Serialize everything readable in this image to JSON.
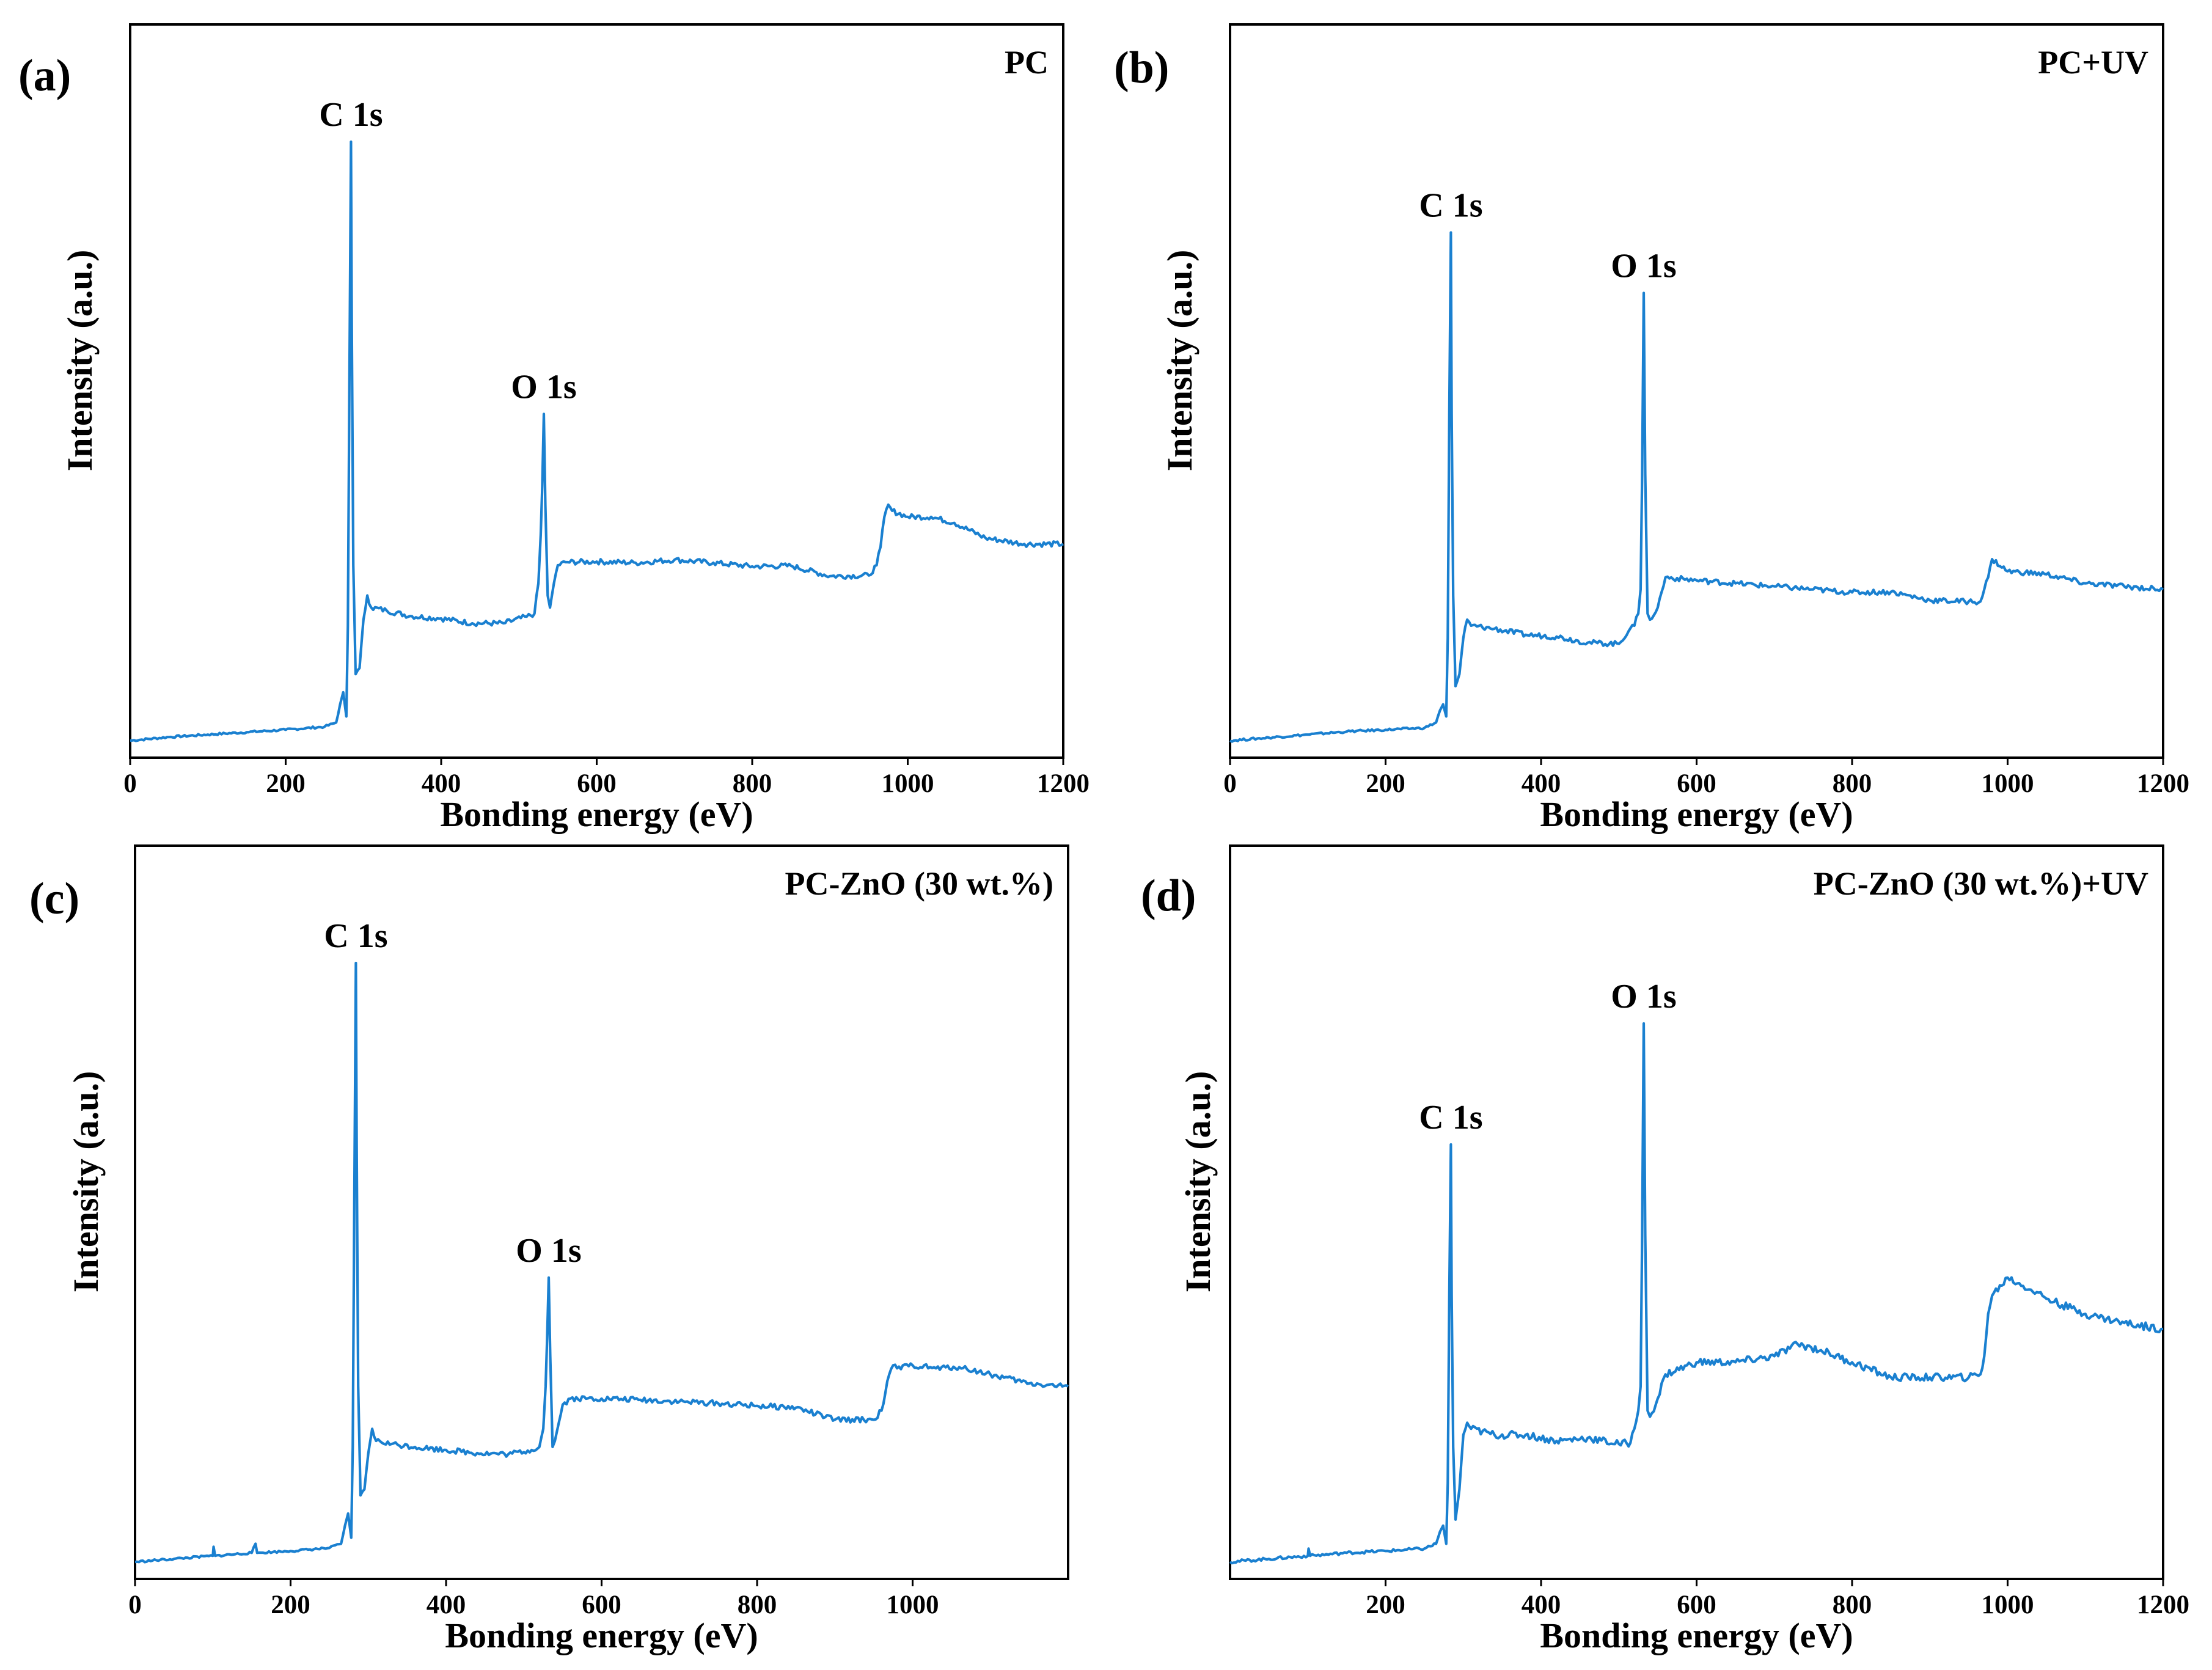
{
  "figure": {
    "line_color": "#1a80d0",
    "x_axis_label": "Bonding energy (eV)",
    "y_axis_label": "Intensity (a.u.)"
  },
  "chart_data": [
    {
      "type": "line",
      "panel": "(a)",
      "sample": "PC",
      "xlabel": "Bonding energy (eV)",
      "ylabel": "Intensity (a.u.)",
      "xlim": [
        0,
        1200
      ],
      "xticks": [
        "0",
        "200",
        "400",
        "600",
        "800",
        "1000",
        "1200"
      ],
      "ylim": [
        0,
        100
      ],
      "yticks": [],
      "annotations": [
        {
          "text": "C 1s",
          "x": 284,
          "y": 100
        },
        {
          "text": "O 1s",
          "x": 532,
          "y": 55
        }
      ],
      "series": [
        {
          "name": "PC",
          "x": [
            0,
            50,
            100,
            150,
            200,
            250,
            265,
            270,
            274,
            278,
            280,
            282,
            284,
            285,
            287,
            290,
            295,
            300,
            305,
            310,
            330,
            360,
            400,
            440,
            480,
            510,
            520,
            525,
            528,
            530,
            532,
            534,
            537,
            540,
            545,
            550,
            560,
            600,
            650,
            700,
            750,
            800,
            850,
            900,
            950,
            960,
            965,
            970,
            975,
            980,
            1000,
            1030,
            1060,
            1100,
            1150,
            1200
          ],
          "y": [
            1,
            1.6,
            2,
            2.4,
            2.8,
            3.3,
            4,
            7,
            9,
            5,
            20,
            60,
            100,
            70,
            30,
            12,
            13,
            21,
            25,
            23,
            22.5,
            21.6,
            21.2,
            20.4,
            20.4,
            21.5,
            22,
            27,
            35,
            43,
            55,
            40,
            25,
            23,
            27,
            30,
            30.5,
            30.6,
            30.4,
            30.9,
            30.4,
            29.8,
            29.9,
            28.2,
            28.3,
            30,
            33,
            38,
            40,
            39,
            38,
            38,
            37,
            34.5,
            33.5,
            33.5
          ]
        }
      ]
    },
    {
      "type": "line",
      "panel": "(b)",
      "sample": "PC+UV",
      "xlabel": "Bonding energy (eV)",
      "ylabel": "Intensity (a.u.)",
      "xlim": [
        0,
        1200
      ],
      "xticks": [
        "0",
        "200",
        "400",
        "600",
        "800",
        "1000",
        "1200"
      ],
      "ylim": [
        0,
        100
      ],
      "yticks": [],
      "annotations": [
        {
          "text": "C 1s",
          "x": 284,
          "y": 85
        },
        {
          "text": "O 1s",
          "x": 532,
          "y": 75
        }
      ],
      "series": [
        {
          "name": "PC+UV",
          "x": [
            0,
            50,
            100,
            150,
            200,
            250,
            265,
            270,
            274,
            278,
            280,
            282,
            284,
            285,
            287,
            290,
            295,
            300,
            305,
            310,
            340,
            380,
            420,
            460,
            500,
            515,
            520,
            525,
            528,
            530,
            532,
            534,
            537,
            540,
            550,
            560,
            600,
            650,
            700,
            750,
            800,
            850,
            900,
            950,
            965,
            970,
            975,
            980,
            1000,
            1050,
            1100,
            1150,
            1200
          ],
          "y": [
            1,
            1.5,
            2,
            2.5,
            2.8,
            3.1,
            4,
            6,
            7,
            5,
            18,
            55,
            85,
            55,
            25,
            10,
            12,
            18,
            21,
            20,
            19.5,
            18.5,
            18.2,
            17.2,
            17,
            19.6,
            20,
            22,
            26,
            45,
            75,
            45,
            22,
            21,
            23,
            28,
            27.5,
            27,
            26.5,
            26,
            25.5,
            25.6,
            24.2,
            24,
            24,
            26,
            28,
            31,
            29,
            28.5,
            27,
            26.5,
            26
          ]
        }
      ]
    },
    {
      "type": "line",
      "panel": "(c)",
      "sample": "PC-ZnO (30 wt.%)",
      "xlabel": "Bonding energy (eV)",
      "ylabel": "Intensity (a.u.)",
      "xlim": [
        0,
        1200
      ],
      "xticks": [
        "0",
        "200",
        "400",
        "600",
        "800",
        "1000"
      ],
      "ylim": [
        0,
        100
      ],
      "yticks": [],
      "annotations": [
        {
          "text": "C 1s",
          "x": 284,
          "y": 100
        },
        {
          "text": "O 1s",
          "x": 532,
          "y": 48
        }
      ],
      "series": [
        {
          "name": "PC-ZnO (30 wt.%)",
          "x": [
            0,
            50,
            100,
            101,
            103,
            150,
            155,
            157,
            200,
            250,
            265,
            270,
            274,
            278,
            280,
            282,
            284,
            285,
            287,
            290,
            295,
            300,
            305,
            310,
            330,
            360,
            400,
            440,
            480,
            510,
            520,
            525,
            528,
            530,
            532,
            534,
            537,
            540,
            545,
            550,
            560,
            600,
            650,
            700,
            750,
            800,
            850,
            900,
            950,
            960,
            965,
            970,
            975,
            980,
            1000,
            1030,
            1060,
            1100,
            1150,
            1200
          ],
          "y": [
            1,
            1.5,
            2,
            3.5,
            2,
            2.5,
            4,
            2.5,
            2.8,
            3.3,
            4,
            7,
            9,
            5,
            20,
            60,
            100,
            70,
            30,
            12,
            13,
            19,
            23,
            21,
            20.5,
            20,
            19.5,
            19,
            18.8,
            19.5,
            20,
            23,
            30,
            38,
            48,
            35,
            20,
            21,
            24,
            27,
            28,
            28,
            27.8,
            27.5,
            27.2,
            26.8,
            26.5,
            24.5,
            24.5,
            26,
            29,
            32,
            33.5,
            33,
            33.5,
            33,
            33.2,
            32,
            30.5,
            30
          ]
        }
      ]
    },
    {
      "type": "line",
      "panel": "(d)",
      "sample": "PC-ZnO (30 wt.%)+UV",
      "xlabel": "Bonding energy (eV)",
      "ylabel": "Intensity (a.u.)",
      "xlim": [
        0,
        1200
      ],
      "xticks": [
        "200",
        "400",
        "600",
        "800",
        "1000",
        "1200"
      ],
      "ylim": [
        0,
        100
      ],
      "yticks": [],
      "annotations": [
        {
          "text": "C 1s",
          "x": 284,
          "y": 70
        },
        {
          "text": "O 1s",
          "x": 532,
          "y": 90
        }
      ],
      "series": [
        {
          "name": "PC-ZnO (30 wt.%)+UV",
          "x": [
            0,
            50,
            100,
            101,
            103,
            150,
            200,
            250,
            265,
            270,
            274,
            278,
            280,
            282,
            284,
            285,
            287,
            290,
            295,
            300,
            305,
            310,
            340,
            380,
            420,
            460,
            500,
            515,
            520,
            525,
            528,
            530,
            532,
            534,
            537,
            540,
            550,
            560,
            600,
            650,
            700,
            730,
            760,
            800,
            850,
            900,
            950,
            965,
            970,
            975,
            980,
            1000,
            1030,
            1060,
            1100,
            1150,
            1200
          ],
          "y": [
            1,
            1.5,
            2,
            3.2,
            2,
            2.5,
            2.8,
            3.2,
            4,
            6,
            7,
            4,
            14,
            45,
            70,
            45,
            20,
            8,
            13,
            22,
            24,
            23,
            22,
            22,
            21,
            21.5,
            20.5,
            20.7,
            23,
            26,
            30,
            55,
            90,
            55,
            26,
            25,
            28,
            32,
            34,
            34,
            35,
            37,
            36,
            34,
            31.5,
            31.5,
            31.5,
            32,
            35,
            42,
            45,
            48,
            46,
            44,
            42,
            40.5,
            39.5
          ]
        }
      ]
    }
  ]
}
